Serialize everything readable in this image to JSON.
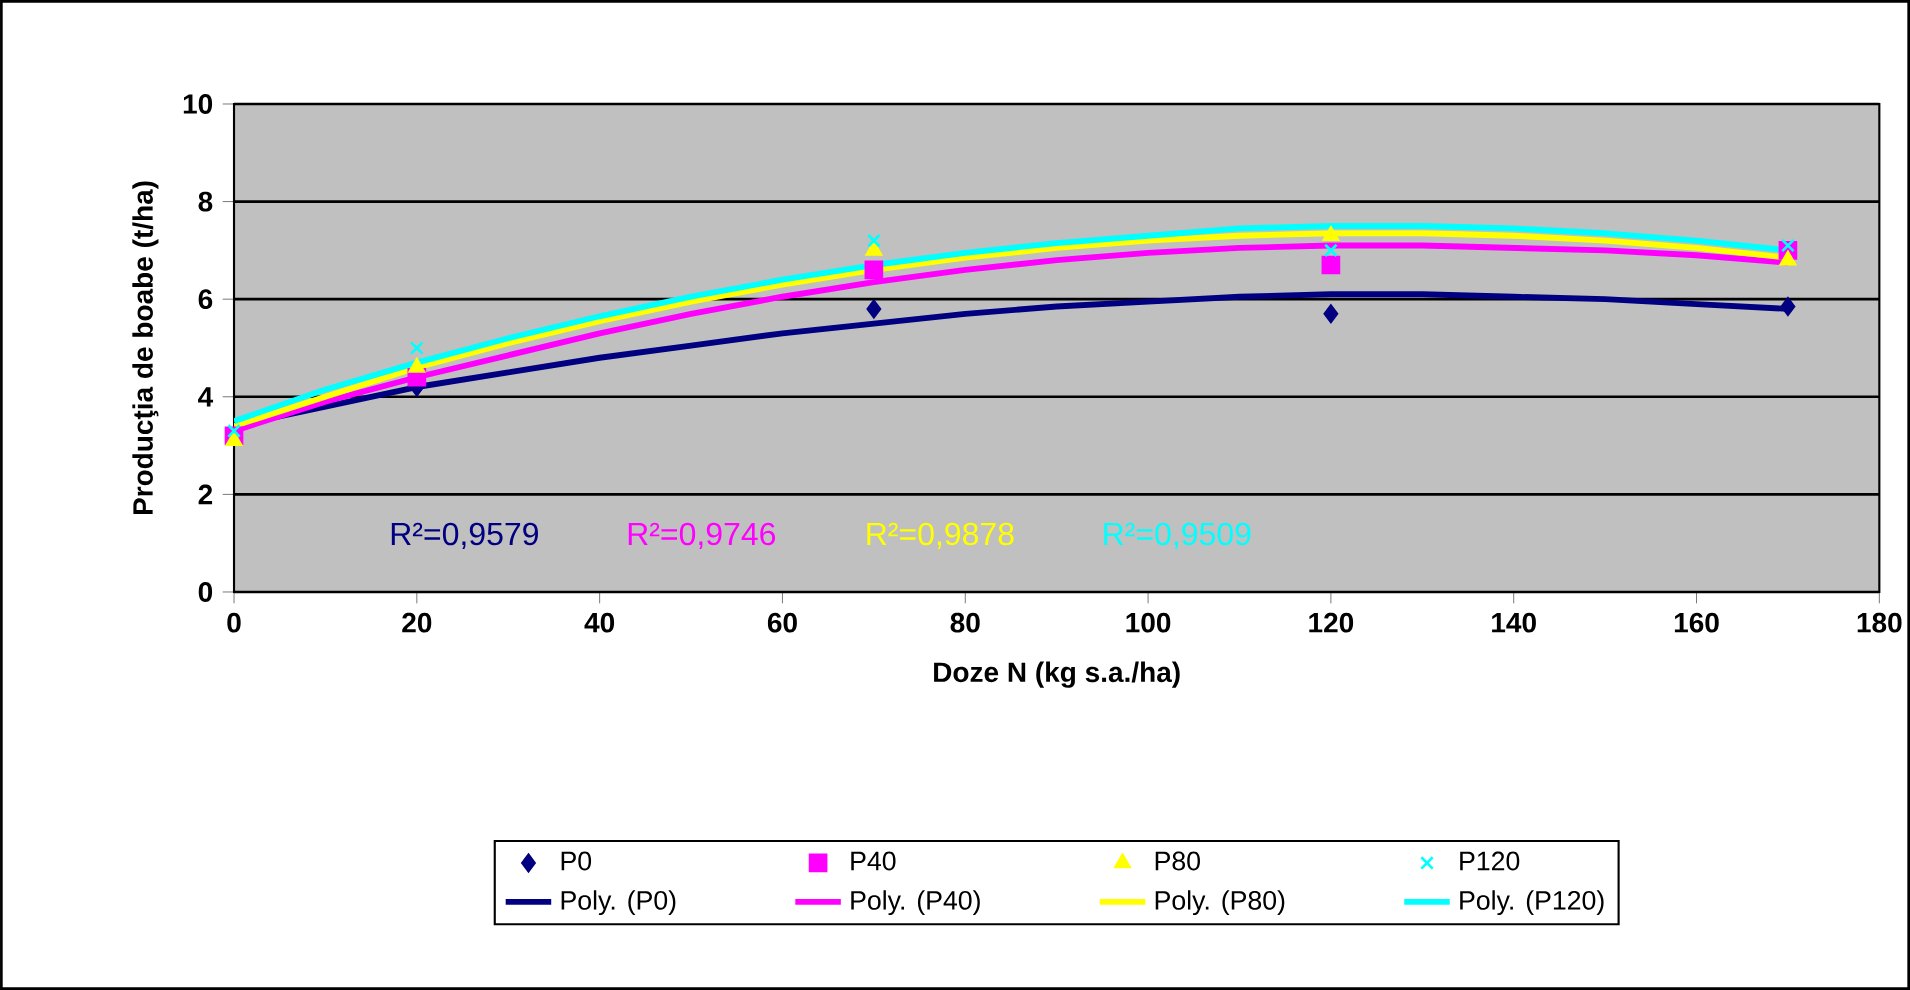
{
  "chart_data": {
    "type": "scatter",
    "xlabel": "Doze N (kg s.a./ha)",
    "ylabel": "Producţia de boabe (t/ha)",
    "xlim": [
      0,
      180
    ],
    "xticks": [
      0,
      20,
      40,
      60,
      80,
      100,
      120,
      140,
      160,
      180
    ],
    "ylim": [
      0,
      10
    ],
    "yticks": [
      0,
      2,
      4,
      6,
      8,
      10
    ],
    "grid": "y",
    "legend": "bottom",
    "series": [
      {
        "name": "P0",
        "marker": "diamond",
        "color": "#000080",
        "x": [
          20,
          70,
          120,
          170
        ],
        "values": [
          4.2,
          5.8,
          5.7,
          5.85
        ]
      },
      {
        "name": "P40",
        "marker": "square",
        "color": "#ff00ff",
        "x": [
          0,
          20,
          70,
          120,
          170
        ],
        "values": [
          3.2,
          4.4,
          6.6,
          6.7,
          7.0
        ]
      },
      {
        "name": "P80",
        "marker": "triangle",
        "color": "#ffff00",
        "x": [
          0,
          20,
          70,
          120,
          170
        ],
        "values": [
          3.1,
          4.6,
          7.0,
          7.3,
          6.8
        ]
      },
      {
        "name": "P120",
        "marker": "cross",
        "color": "#00ffff",
        "x": [
          0,
          20,
          70,
          120,
          170
        ],
        "values": [
          3.3,
          5.0,
          7.2,
          7.0,
          7.1
        ]
      },
      {
        "name": "Poly. (P0)",
        "type": "line",
        "marker": "none",
        "color": "#000080",
        "x": [
          0,
          10,
          20,
          30,
          40,
          50,
          60,
          70,
          80,
          90,
          100,
          110,
          120,
          130,
          140,
          150,
          160,
          170
        ],
        "values": [
          3.4,
          3.8,
          4.2,
          4.5,
          4.8,
          5.05,
          5.3,
          5.5,
          5.7,
          5.85,
          5.95,
          6.05,
          6.1,
          6.1,
          6.05,
          6.0,
          5.9,
          5.8
        ]
      },
      {
        "name": "Poly. (P40)",
        "type": "line",
        "marker": "none",
        "color": "#ff00ff",
        "x": [
          0,
          10,
          20,
          30,
          40,
          50,
          60,
          70,
          80,
          90,
          100,
          110,
          120,
          130,
          140,
          150,
          160,
          170
        ],
        "values": [
          3.3,
          3.9,
          4.4,
          4.85,
          5.3,
          5.7,
          6.05,
          6.35,
          6.6,
          6.8,
          6.95,
          7.05,
          7.1,
          7.1,
          7.05,
          7.0,
          6.9,
          6.75
        ]
      },
      {
        "name": "Poly. (P80)",
        "type": "line",
        "marker": "none",
        "color": "#ffff00",
        "x": [
          0,
          10,
          20,
          30,
          40,
          50,
          60,
          70,
          80,
          90,
          100,
          110,
          120,
          130,
          140,
          150,
          160,
          170
        ],
        "values": [
          3.4,
          4.0,
          4.6,
          5.1,
          5.55,
          5.95,
          6.3,
          6.6,
          6.85,
          7.05,
          7.2,
          7.3,
          7.35,
          7.35,
          7.3,
          7.2,
          7.05,
          6.85
        ]
      },
      {
        "name": "Poly. (P120)",
        "type": "line",
        "marker": "none",
        "color": "#00ffff",
        "x": [
          0,
          10,
          20,
          30,
          40,
          50,
          60,
          70,
          80,
          90,
          100,
          110,
          120,
          130,
          140,
          150,
          160,
          170
        ],
        "values": [
          3.5,
          4.15,
          4.7,
          5.2,
          5.65,
          6.05,
          6.4,
          6.7,
          6.95,
          7.15,
          7.3,
          7.45,
          7.5,
          7.5,
          7.45,
          7.35,
          7.2,
          7.0
        ]
      }
    ],
    "annotations": [
      "R²=0,9579",
      "R²=0,9746",
      "R²=0,9878",
      "R²=0,9509"
    ]
  }
}
